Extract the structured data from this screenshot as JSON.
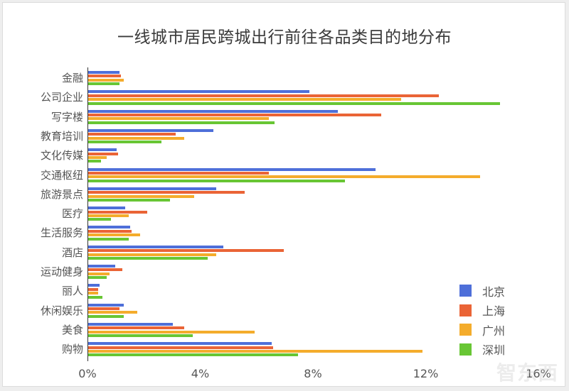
{
  "chart_data": {
    "type": "bar",
    "orientation": "horizontal",
    "title": "一线城市居民跨城出行前往各品类目的地分布",
    "xlabel": "",
    "ylabel": "",
    "xlim": [
      0,
      16
    ],
    "x_ticks": [
      "0%",
      "4%",
      "8%",
      "12%",
      "16%"
    ],
    "x_tick_values": [
      0,
      4,
      8,
      12,
      16
    ],
    "grid": false,
    "legend_position": "bottom-right",
    "categories": [
      "金融",
      "公司企业",
      "写字楼",
      "教育培训",
      "文化传媒",
      "交通枢纽",
      "旅游景点",
      "医疗",
      "生活服务",
      "酒店",
      "运动健身",
      "丽人",
      "休闲娱乐",
      "美食",
      "购物"
    ],
    "series": [
      {
        "name": "北京",
        "color": "#4e6fd9",
        "values": [
          1.1,
          7.85,
          8.85,
          4.45,
          1.0,
          10.2,
          4.55,
          1.3,
          1.5,
          4.8,
          0.95,
          0.4,
          1.25,
          3.0,
          6.5
        ]
      },
      {
        "name": "上海",
        "color": "#ea6436",
        "values": [
          1.15,
          12.45,
          10.4,
          3.1,
          1.05,
          6.4,
          5.55,
          2.1,
          1.55,
          6.95,
          1.2,
          0.35,
          1.1,
          3.4,
          6.55
        ]
      },
      {
        "name": "广州",
        "color": "#f4ac2c",
        "values": [
          1.25,
          11.1,
          6.4,
          3.4,
          0.65,
          13.9,
          3.75,
          1.45,
          1.85,
          4.55,
          0.75,
          0.35,
          1.75,
          5.9,
          11.85
        ]
      },
      {
        "name": "深圳",
        "color": "#68c634",
        "values": [
          1.1,
          14.6,
          6.6,
          2.6,
          0.45,
          9.1,
          2.9,
          0.8,
          1.45,
          4.25,
          0.65,
          0.5,
          1.25,
          3.7,
          7.45
        ]
      }
    ]
  },
  "watermark": "智东西"
}
